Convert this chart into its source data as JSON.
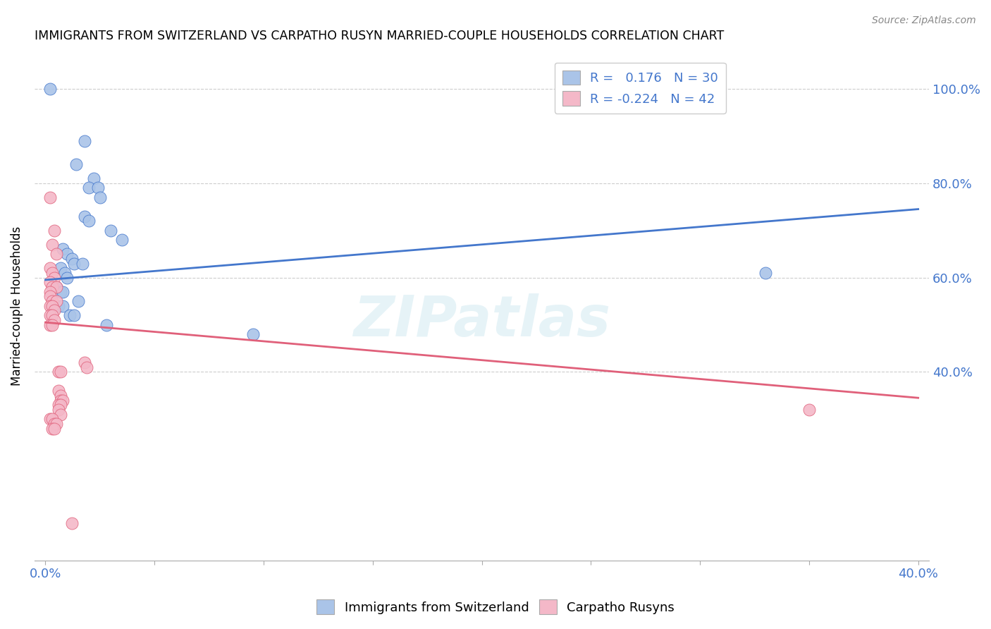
{
  "title": "IMMIGRANTS FROM SWITZERLAND VS CARPATHO RUSYN MARRIED-COUPLE HOUSEHOLDS CORRELATION CHART",
  "source": "Source: ZipAtlas.com",
  "ylabel": "Married-couple Households",
  "legend1_label": "Immigrants from Switzerland",
  "legend2_label": "Carpatho Rusyns",
  "r1": 0.176,
  "n1": 30,
  "r2": -0.224,
  "n2": 42,
  "color_blue_fill": "#aac4e8",
  "color_pink_fill": "#f4b8c8",
  "color_blue_line": "#4477cc",
  "color_pink_line": "#e0607a",
  "blue_scatter": [
    [
      0.002,
      1.0
    ],
    [
      0.018,
      0.89
    ],
    [
      0.014,
      0.84
    ],
    [
      0.022,
      0.81
    ],
    [
      0.02,
      0.79
    ],
    [
      0.024,
      0.79
    ],
    [
      0.025,
      0.77
    ],
    [
      0.018,
      0.73
    ],
    [
      0.02,
      0.72
    ],
    [
      0.03,
      0.7
    ],
    [
      0.035,
      0.68
    ],
    [
      0.008,
      0.66
    ],
    [
      0.01,
      0.65
    ],
    [
      0.012,
      0.64
    ],
    [
      0.013,
      0.63
    ],
    [
      0.017,
      0.63
    ],
    [
      0.007,
      0.62
    ],
    [
      0.009,
      0.61
    ],
    [
      0.01,
      0.6
    ],
    [
      0.005,
      0.58
    ],
    [
      0.007,
      0.57
    ],
    [
      0.008,
      0.57
    ],
    [
      0.015,
      0.55
    ],
    [
      0.006,
      0.54
    ],
    [
      0.008,
      0.54
    ],
    [
      0.011,
      0.52
    ],
    [
      0.013,
      0.52
    ],
    [
      0.028,
      0.5
    ],
    [
      0.33,
      0.61
    ],
    [
      0.095,
      0.48
    ]
  ],
  "pink_scatter": [
    [
      0.002,
      0.77
    ],
    [
      0.004,
      0.7
    ],
    [
      0.003,
      0.67
    ],
    [
      0.005,
      0.65
    ],
    [
      0.002,
      0.62
    ],
    [
      0.003,
      0.61
    ],
    [
      0.004,
      0.6
    ],
    [
      0.002,
      0.59
    ],
    [
      0.003,
      0.58
    ],
    [
      0.005,
      0.58
    ],
    [
      0.002,
      0.57
    ],
    [
      0.002,
      0.56
    ],
    [
      0.003,
      0.55
    ],
    [
      0.005,
      0.55
    ],
    [
      0.002,
      0.54
    ],
    [
      0.003,
      0.54
    ],
    [
      0.004,
      0.53
    ],
    [
      0.002,
      0.52
    ],
    [
      0.003,
      0.52
    ],
    [
      0.004,
      0.51
    ],
    [
      0.002,
      0.5
    ],
    [
      0.003,
      0.5
    ],
    [
      0.018,
      0.42
    ],
    [
      0.019,
      0.41
    ],
    [
      0.006,
      0.4
    ],
    [
      0.007,
      0.4
    ],
    [
      0.006,
      0.36
    ],
    [
      0.007,
      0.35
    ],
    [
      0.007,
      0.34
    ],
    [
      0.008,
      0.34
    ],
    [
      0.006,
      0.33
    ],
    [
      0.007,
      0.33
    ],
    [
      0.006,
      0.32
    ],
    [
      0.007,
      0.31
    ],
    [
      0.002,
      0.3
    ],
    [
      0.003,
      0.3
    ],
    [
      0.004,
      0.29
    ],
    [
      0.005,
      0.29
    ],
    [
      0.003,
      0.28
    ],
    [
      0.004,
      0.28
    ],
    [
      0.35,
      0.32
    ],
    [
      0.012,
      0.08
    ]
  ],
  "blue_line_x": [
    0.0,
    0.4
  ],
  "blue_line_y": [
    0.595,
    0.745
  ],
  "pink_line_x": [
    0.0,
    0.4
  ],
  "pink_line_y": [
    0.505,
    0.345
  ],
  "xlim": [
    -0.005,
    0.405
  ],
  "ylim": [
    0.0,
    1.08
  ],
  "y_ticks": [
    0.4,
    0.6,
    0.8,
    1.0
  ],
  "x_ticks_show": [
    0.0,
    0.4
  ],
  "x_ticks_all": [
    0.0,
    0.05,
    0.1,
    0.15,
    0.2,
    0.25,
    0.3,
    0.35,
    0.4
  ],
  "background_color": "#ffffff",
  "grid_color": "#cccccc",
  "watermark": "ZIPatlas"
}
